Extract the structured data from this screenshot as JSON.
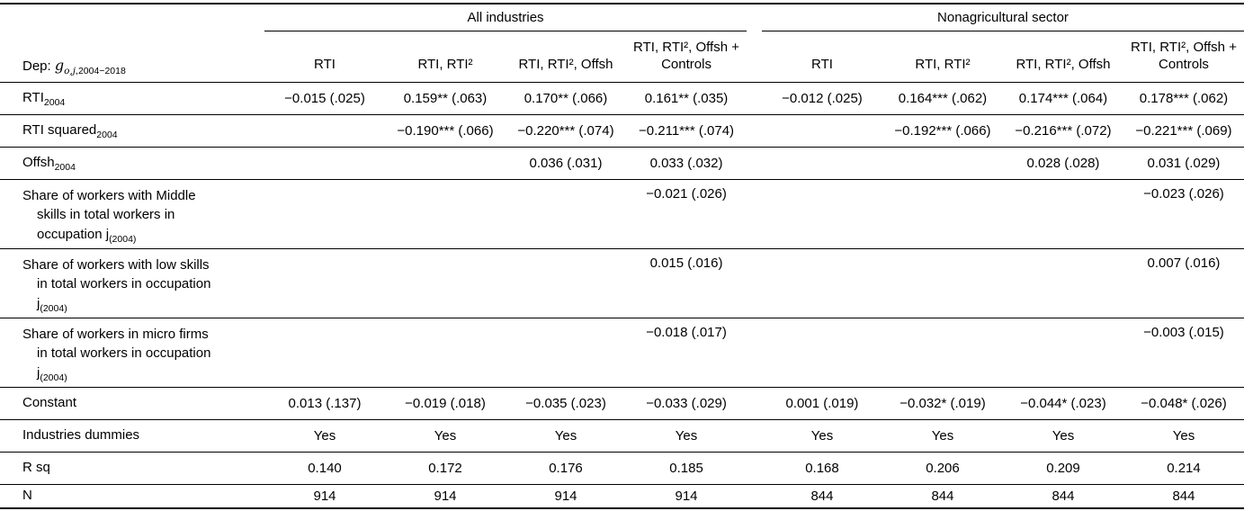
{
  "table": {
    "dep": {
      "prefix": "Dep: ",
      "symbol": "g",
      "sub_italic": "o,j",
      "sub_rest": ",2004−2018"
    },
    "groups": [
      {
        "label": "All industries"
      },
      {
        "label": "Nonagricultural sector"
      }
    ],
    "col_headers": [
      "RTI",
      "RTI, RTI²",
      "RTI, RTI², Offsh",
      "RTI, RTI², Offsh + Controls",
      "RTI",
      "RTI, RTI²",
      "RTI, RTI², Offsh",
      "RTI, RTI², Offsh + Controls"
    ],
    "rows": [
      {
        "label": {
          "text": "RTI",
          "sub": "2004"
        },
        "tall": false,
        "cells": [
          "−0.015 (.025)",
          "0.159** (.063)",
          "0.170** (.066)",
          "0.161** (.035)",
          "−0.012 (.025)",
          "0.164*** (.062)",
          "0.174*** (.064)",
          "0.178*** (.062)"
        ]
      },
      {
        "label": {
          "text": "RTI squared",
          "sub": "2004"
        },
        "tall": false,
        "cells": [
          "",
          "−0.190*** (.066)",
          "−0.220*** (.074)",
          "−0.211*** (.074)",
          "",
          "−0.192*** (.066)",
          "−0.216*** (.072)",
          "−0.221*** (.069)"
        ]
      },
      {
        "label": {
          "text": "Offsh",
          "sub": "2004"
        },
        "tall": false,
        "cells": [
          "",
          "",
          "0.036 (.031)",
          "0.033 (.032)",
          "",
          "",
          "0.028 (.028)",
          "0.031 (.029)"
        ]
      },
      {
        "label": {
          "text": "Share of workers with Middle skills in total workers in occupation j",
          "sub": "(2004)"
        },
        "tall": true,
        "cells": [
          "",
          "",
          "",
          "−0.021 (.026)",
          "",
          "",
          "",
          "−0.023 (.026)"
        ]
      },
      {
        "label": {
          "text": "Share of workers with low skills in total workers in occupation j",
          "sub": "(2004)"
        },
        "tall": true,
        "cells": [
          "",
          "",
          "",
          "0.015 (.016)",
          "",
          "",
          "",
          "0.007 (.016)"
        ]
      },
      {
        "label": {
          "text": "Share of workers in micro firms in total workers in occupation j",
          "sub": "(2004)"
        },
        "tall": true,
        "cells": [
          "",
          "",
          "",
          "−0.018 (.017)",
          "",
          "",
          "",
          "−0.003 (.015)"
        ]
      },
      {
        "label": {
          "text": "Constant",
          "sub": ""
        },
        "tall": false,
        "cells": [
          "0.013 (.137)",
          "−0.019 (.018)",
          "−0.035 (.023)",
          "−0.033 (.029)",
          "0.001 (.019)",
          "−0.032* (.019)",
          "−0.044* (.023)",
          "−0.048* (.026)"
        ]
      },
      {
        "label": {
          "text": "Industries dummies",
          "sub": ""
        },
        "tall": false,
        "cells": [
          "Yes",
          "Yes",
          "Yes",
          "Yes",
          "Yes",
          "Yes",
          "Yes",
          "Yes"
        ]
      },
      {
        "label": {
          "text": "R sq",
          "sub": ""
        },
        "tall": false,
        "cells": [
          "0.140",
          "0.172",
          "0.176",
          "0.185",
          "0.168",
          "0.206",
          "0.209",
          "0.214"
        ]
      },
      {
        "label": {
          "text": "N",
          "sub": ""
        },
        "tall": false,
        "cells": [
          "914",
          "914",
          "914",
          "914",
          "844",
          "844",
          "844",
          "844"
        ]
      }
    ]
  }
}
